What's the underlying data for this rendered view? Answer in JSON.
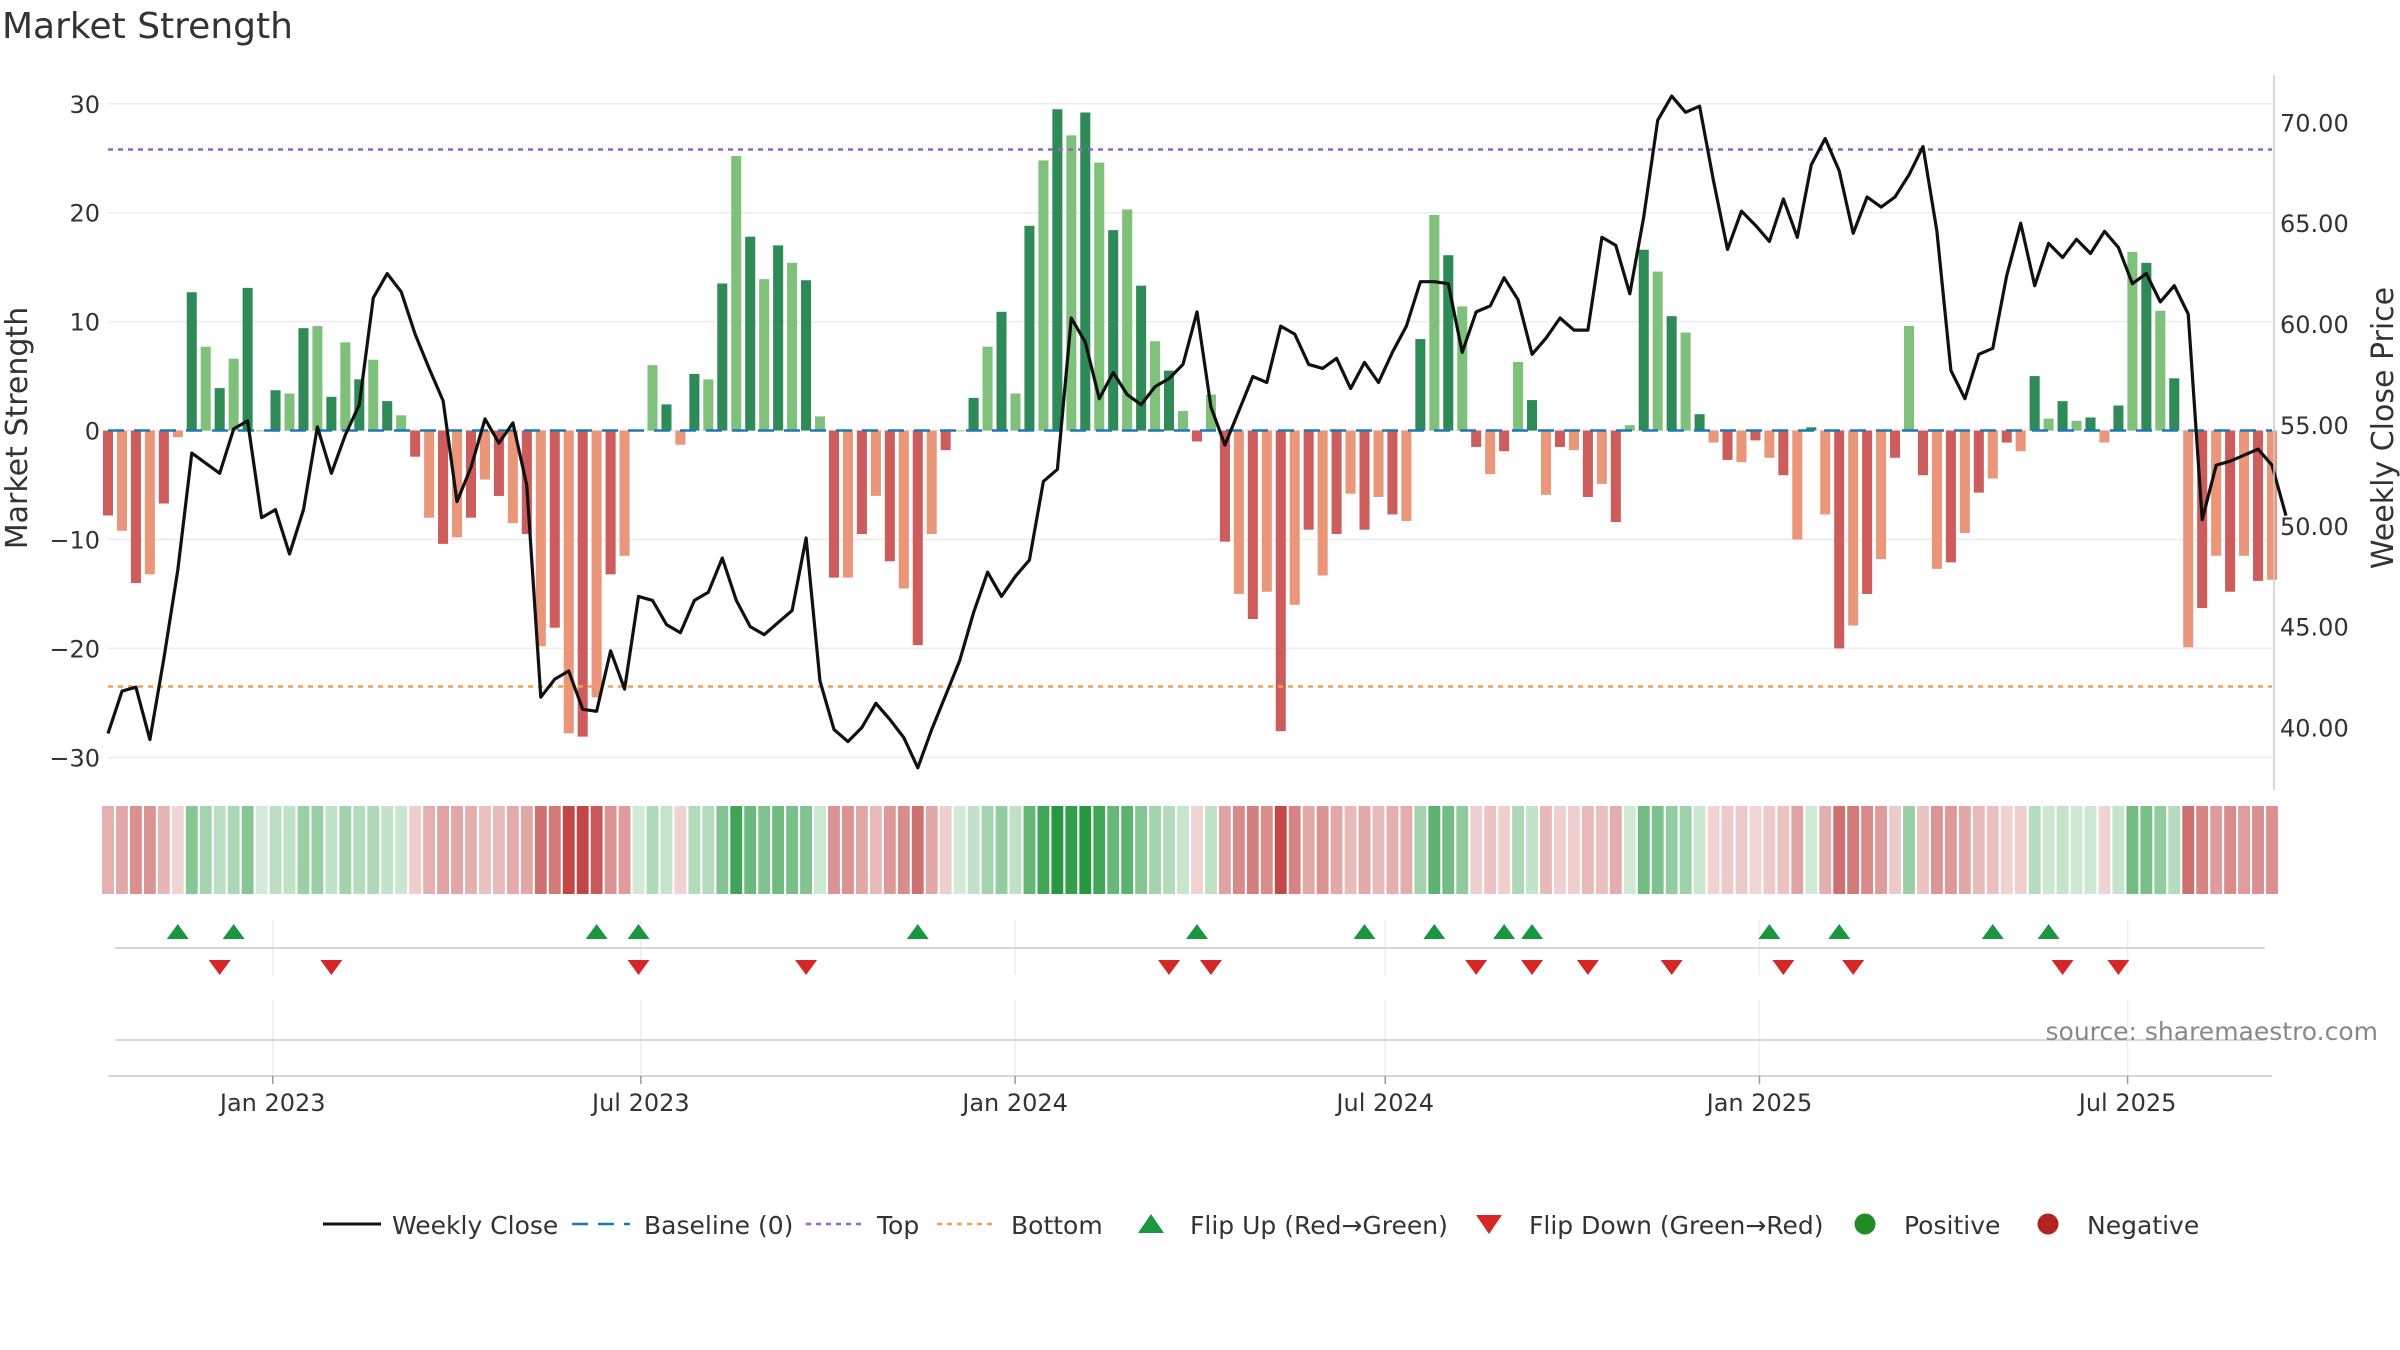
{
  "chart_data": {
    "type": "bar",
    "title": "Market Strength",
    "ylabel_left": "Market Strength",
    "ylabel_right": "Weekly Close Price",
    "source": "source: sharemaestro.com",
    "left_axis": {
      "ylim": [
        -33,
        32
      ],
      "ticks": [
        30,
        20,
        10,
        0,
        -10,
        -20,
        -30
      ],
      "tick_labels": [
        "30",
        "20",
        "10",
        "0",
        "−10",
        "−20",
        "−30"
      ]
    },
    "right_axis": {
      "ylim": [
        36.9,
        72.0
      ],
      "ticks": [
        70,
        65,
        60,
        55,
        50,
        45,
        40
      ],
      "tick_labels": [
        "70.00",
        "65.00",
        "60.00",
        "55.00",
        "50.00",
        "45.00",
        "40.00"
      ]
    },
    "x_axis": {
      "start": "2022-10-12",
      "end": "2025-09-10",
      "interval_days": 7,
      "ticks": [
        {
          "date": "2023-01-01",
          "label": "Jan 2023"
        },
        {
          "date": "2023-07-01",
          "label": "Jul 2023"
        },
        {
          "date": "2024-01-01",
          "label": "Jan 2024"
        },
        {
          "date": "2024-07-01",
          "label": "Jul 2024"
        },
        {
          "date": "2025-01-01",
          "label": "Jan 2025"
        },
        {
          "date": "2025-07-01",
          "label": "Jul 2025"
        }
      ]
    },
    "top_level": 25.8,
    "bottom_level": -23.5,
    "strength": [
      -7.8,
      -9.2,
      -14,
      -13.2,
      -6.7,
      -0.6,
      12.7,
      7.7,
      3.9,
      6.6,
      13.1,
      0,
      3.7,
      3.4,
      9.4,
      9.6,
      3.1,
      8.1,
      4.7,
      6.5,
      2.7,
      1.4,
      -2.4,
      -8,
      -10.4,
      -9.8,
      -8,
      -4.5,
      -6,
      -8.5,
      -9.5,
      -19.8,
      -18.1,
      -27.8,
      -28.1,
      -24.5,
      -13.2,
      -11.5,
      0,
      6,
      2.4,
      -1.3,
      5.2,
      4.7,
      13.5,
      25.2,
      17.8,
      13.9,
      17,
      15.4,
      13.8,
      1.3,
      -13.5,
      -13.5,
      -9.5,
      -6,
      -12,
      -14.5,
      -19.7,
      -9.5,
      -1.8,
      0,
      3,
      7.7,
      10.9,
      3.4,
      18.8,
      24.8,
      29.5,
      27.1,
      29.2,
      24.6,
      18.4,
      20.3,
      13.3,
      8.2,
      5.5,
      1.8,
      -1,
      3.3,
      -10.2,
      -15,
      -17.3,
      -14.8,
      -27.6,
      -16,
      -9.1,
      -13.3,
      -9.5,
      -5.8,
      -9.1,
      -6.1,
      -7.7,
      -8.3,
      8.4,
      19.8,
      16.1,
      11.4,
      -1.5,
      -4,
      -1.9,
      6.3,
      2.8,
      -5.9,
      -1.5,
      -1.8,
      -6.1,
      -4.9,
      -8.4,
      0.5,
      16.6,
      14.6,
      10.5,
      9,
      1.5,
      -1.1,
      -2.7,
      -2.9,
      -0.9,
      -2.5,
      -4.1,
      -10,
      0.3,
      -7.7,
      -20,
      -17.9,
      -15,
      -11.8,
      -2.5,
      9.6,
      -4.1,
      -12.7,
      -12.1,
      -9.4,
      -5.7,
      -4.4,
      -1.1,
      -1.9,
      5,
      1.1,
      2.7,
      0.9,
      1.2,
      -1.1,
      2.3,
      16.4,
      15.4,
      11,
      4.8,
      -19.9,
      -16.3,
      -11.5,
      -14.8,
      -11.5,
      -13.8,
      -13.7
    ],
    "phase": [
      "n",
      "n",
      "n",
      "n",
      "n",
      "n",
      "p",
      "p",
      "p",
      "p",
      "p",
      "n",
      "p",
      "p",
      "p",
      "p",
      "p",
      "p",
      "p",
      "p",
      "p",
      "p",
      "n",
      "n",
      "n",
      "n",
      "n",
      "n",
      "n",
      "n",
      "n",
      "n",
      "n",
      "n",
      "n",
      "n",
      "n",
      "n",
      "n",
      "p",
      "p",
      "n",
      "p",
      "p",
      "p",
      "p",
      "p",
      "p",
      "p",
      "p",
      "p",
      "p",
      "n",
      "n",
      "n",
      "n",
      "n",
      "n",
      "n",
      "n",
      "n",
      "n",
      "p",
      "p",
      "p",
      "p",
      "p",
      "p",
      "p",
      "p",
      "p",
      "p",
      "p",
      "p",
      "p",
      "p",
      "p",
      "p",
      "n",
      "p",
      "n",
      "n",
      "n",
      "n",
      "n",
      "n",
      "n",
      "n",
      "n",
      "n",
      "n",
      "n",
      "n",
      "n",
      "p",
      "p",
      "p",
      "p",
      "n",
      "n",
      "n",
      "p",
      "p",
      "n",
      "n",
      "n",
      "n",
      "n",
      "n",
      "p",
      "p",
      "p",
      "p",
      "p",
      "p",
      "n",
      "n",
      "n",
      "n",
      "n",
      "n",
      "n",
      "p",
      "n",
      "n",
      "n",
      "n",
      "n",
      "n",
      "p",
      "n",
      "n",
      "n",
      "n",
      "n",
      "n",
      "n",
      "n",
      "p",
      "p",
      "p",
      "p",
      "p",
      "n",
      "p",
      "p",
      "p",
      "p",
      "p",
      "n",
      "n",
      "n",
      "n",
      "n",
      "n",
      "n"
    ],
    "price": [
      39.7,
      41.8,
      42,
      39.4,
      43.4,
      47.8,
      53.6,
      53.1,
      52.6,
      54.8,
      55.2,
      50.4,
      50.8,
      48.6,
      50.8,
      54.9,
      52.6,
      54.5,
      56,
      61.3,
      62.5,
      61.6,
      59.5,
      57.8,
      56.2,
      51.2,
      52.9,
      55.3,
      54.1,
      55.1,
      52,
      41.5,
      42.4,
      42.8,
      40.9,
      40.8,
      43.8,
      41.9,
      46.5,
      46.3,
      45.1,
      44.7,
      46.3,
      46.7,
      48.4,
      46.3,
      45,
      44.6,
      45.2,
      45.8,
      49.4,
      42.3,
      39.9,
      39.3,
      40,
      41.2,
      40.4,
      39.5,
      38,
      39.9,
      41.6,
      43.3,
      45.7,
      47.7,
      46.5,
      47.5,
      48.3,
      52.2,
      52.8,
      60.3,
      59.1,
      56.3,
      57.6,
      56.5,
      56,
      56.9,
      57.3,
      58,
      60.6,
      55.9,
      54,
      55.7,
      57.4,
      57.1,
      59.9,
      59.5,
      58,
      57.8,
      58.3,
      56.8,
      58.1,
      57.1,
      58.6,
      59.9,
      62.1,
      62.1,
      62,
      58.6,
      60.6,
      60.9,
      62.3,
      61.2,
      58.5,
      59.3,
      60.3,
      59.7,
      59.7,
      64.3,
      63.9,
      61.5,
      65.3,
      70.1,
      71.3,
      70.5,
      70.8,
      67.1,
      63.7,
      65.6,
      64.9,
      64.1,
      66.2,
      64.3,
      67.9,
      69.2,
      67.6,
      64.5,
      66.3,
      65.8,
      66.3,
      67.4,
      68.8,
      64.6,
      57.7,
      56.3,
      58.5,
      58.8,
      62.4,
      65,
      61.9,
      64,
      63.3,
      64.2,
      63.5,
      64.6,
      63.8,
      62,
      62.5,
      61.1,
      61.9,
      60.5,
      50.3,
      53,
      53.2,
      53.5,
      53.8,
      53,
      50.5
    ],
    "flip_up": [
      "2022-11-16",
      "2022-12-14",
      "2023-06-14",
      "2023-07-05",
      "2023-11-22",
      "2024-04-10",
      "2024-07-03",
      "2024-08-07",
      "2024-09-11",
      "2024-09-25",
      "2025-01-22",
      "2025-02-26",
      "2025-05-14",
      "2025-06-11"
    ],
    "flip_down": [
      "2022-12-07",
      "2023-02-01",
      "2023-07-05",
      "2023-09-27",
      "2024-03-27",
      "2024-04-17",
      "2024-08-28",
      "2024-09-25",
      "2024-10-23",
      "2024-12-04",
      "2025-01-29",
      "2025-03-05",
      "2025-06-18",
      "2025-07-16"
    ],
    "colors": {
      "positive_strong": "#2e8b57",
      "positive_light": "#7fc17b",
      "negative_strong": "#cd5c5c",
      "negative_light": "#e9967a",
      "price_line": "#111111",
      "baseline": "#1f77b4",
      "top": "#9467bd",
      "bottom": "#f0a050",
      "flip_up": "#1a9641",
      "flip_down": "#d62728",
      "positive_dot": "#228b22",
      "negative_dot": "#b22222"
    },
    "legend": [
      "Weekly Close",
      "Baseline (0)",
      "Top",
      "Bottom",
      "Flip Up (Red→Green)",
      "Flip Down (Green→Red)",
      "Positive",
      "Negative"
    ]
  }
}
